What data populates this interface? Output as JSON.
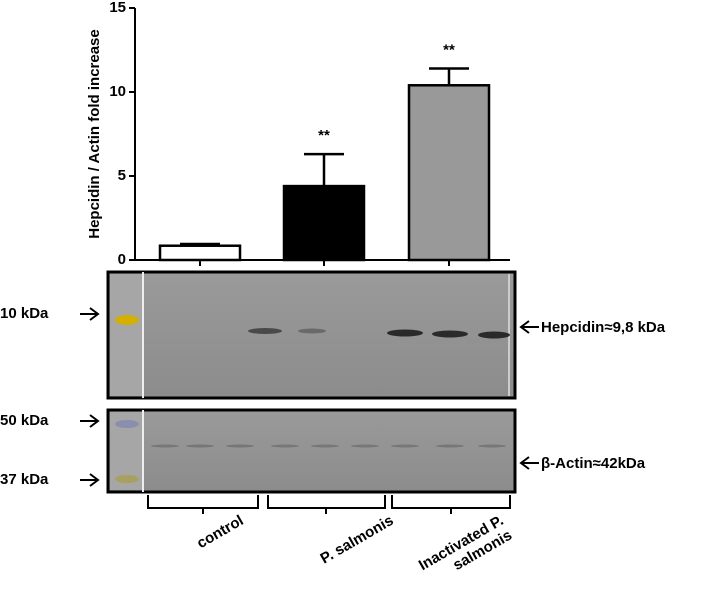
{
  "chart_data": {
    "type": "bar",
    "ylabel": "Hepcidin / Actin fold increase",
    "categories": [
      "control",
      "P. salmonis",
      "Inactivated P. salmonis"
    ],
    "values": [
      0.85,
      4.4,
      10.4
    ],
    "errors": [
      0.1,
      1.9,
      1.0
    ],
    "colors": [
      "#ffffff",
      "#000000",
      "#999999"
    ],
    "annotations": [
      {
        "category": "P. salmonis",
        "text": "**"
      },
      {
        "category": "Inactivated P. salmonis",
        "text": "**"
      }
    ],
    "ylim": [
      0,
      15
    ],
    "yticks": [
      0,
      5,
      10,
      15
    ]
  },
  "blot": {
    "ladder_labels": [
      "10 kDa",
      "50 kDa",
      "37 kDa"
    ],
    "band_labels": [
      "Hepcidin≈9,8 kDa",
      "β-Actin≈42kDa"
    ]
  }
}
